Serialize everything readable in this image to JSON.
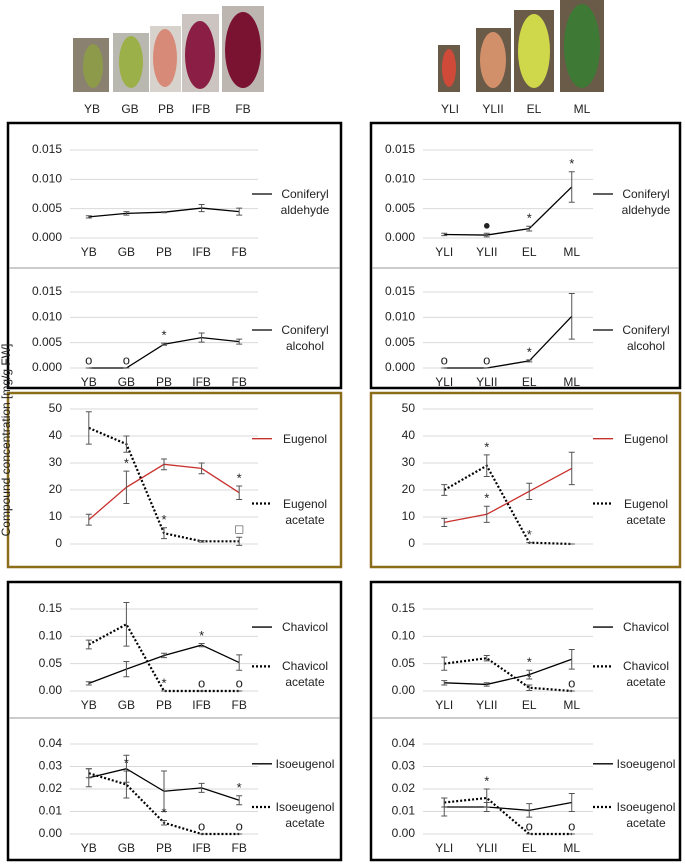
{
  "y_axis_label": "Compound concentration [mg/g FW]",
  "photo_labels": {
    "flowers": [
      "YB",
      "GB",
      "PB",
      "IFB",
      "FB"
    ],
    "leaves": [
      "YLI",
      "YLII",
      "EL",
      "ML"
    ]
  },
  "chart_data": [
    {
      "type": "line",
      "categories": [
        "YB",
        "GB",
        "PB",
        "IFB",
        "FB"
      ],
      "ylim": [
        0,
        0.015
      ],
      "yticks": [
        {
          "value": 0,
          "label": "0.000"
        },
        0.005,
        {
          "value": 0.01,
          "label": "0.010"
        },
        0.015
      ],
      "grid": true,
      "series": [
        {
          "name": "Coniferyl aldehyde",
          "color": "#000000",
          "style": "solid",
          "values": [
            0.0036,
            0.0042,
            0.0044,
            0.0051,
            0.0045
          ],
          "errors": [
            0.0002,
            0.0003,
            0.0001,
            0.0006,
            0.0006
          ]
        }
      ]
    },
    {
      "type": "line",
      "categories": [
        "YB",
        "GB",
        "PB",
        "IFB",
        "FB"
      ],
      "ylim": [
        0,
        0.015
      ],
      "yticks": [
        {
          "value": 0,
          "label": "0.000"
        },
        0.005,
        {
          "value": 0.01,
          "label": "0.010"
        },
        0.015
      ],
      "grid": true,
      "series": [
        {
          "name": "Coniferyl alcohol",
          "color": "#000000",
          "style": "solid",
          "values": [
            0,
            0,
            0.0047,
            0.006,
            0.0052
          ],
          "errors": [
            0,
            0,
            0.0002,
            0.0009,
            0.0005
          ],
          "annotations": [
            "o",
            "o",
            "*",
            null,
            null
          ]
        }
      ]
    },
    {
      "type": "line",
      "categories": [
        "YLI",
        "YLII",
        "EL",
        "ML"
      ],
      "ylim": [
        0,
        0.015
      ],
      "yticks": [
        {
          "value": 0,
          "label": "0.000"
        },
        0.005,
        {
          "value": 0.01,
          "label": "0.010"
        },
        0.015
      ],
      "grid": true,
      "series": [
        {
          "name": "Coniferyl aldehyde",
          "color": "#000000",
          "style": "solid",
          "values": [
            0.0006,
            0.0005,
            0.0016,
            0.0087
          ],
          "errors": [
            0.0002,
            0.0003,
            0.0004,
            0.0026
          ],
          "annotations": [
            null,
            "●",
            "*",
            "*"
          ]
        }
      ]
    },
    {
      "type": "line",
      "categories": [
        "YLI",
        "YLII",
        "EL",
        "ML"
      ],
      "ylim": [
        0,
        0.015
      ],
      "yticks": [
        {
          "value": 0,
          "label": "0.000"
        },
        0.005,
        {
          "value": 0.01,
          "label": "0.010"
        },
        0.015
      ],
      "grid": true,
      "series": [
        {
          "name": "Coniferyl alcohol",
          "color": "#000000",
          "style": "solid",
          "values": [
            0,
            0,
            0.0014,
            0.0102
          ],
          "errors": [
            0,
            0,
            0.0002,
            0.0045
          ],
          "annotations": [
            "o",
            "o",
            "*",
            null
          ]
        }
      ]
    },
    {
      "type": "line",
      "ylim": [
        0,
        50
      ],
      "yticks": [
        0,
        10,
        20,
        30,
        40,
        50
      ],
      "grid": true,
      "series": [
        {
          "name": "Eugenol",
          "color": "#c8302d",
          "style": "solid",
          "values": [
            9,
            21,
            29.5,
            28,
            19
          ],
          "errors": [
            2,
            6,
            2,
            2,
            2.5
          ],
          "annotations": [
            null,
            "*",
            null,
            null,
            "*"
          ]
        },
        {
          "name": "Eugenol acetate",
          "color": "#000000",
          "style": "dotted",
          "values": [
            43,
            37,
            4,
            1,
            1
          ],
          "errors": [
            6,
            3,
            2,
            0.3,
            1.5
          ],
          "annotations": [
            null,
            null,
            "*",
            null,
            "□"
          ]
        }
      ]
    },
    {
      "type": "line",
      "ylim": [
        0,
        50
      ],
      "yticks": [
        0,
        10,
        20,
        30,
        40,
        50
      ],
      "grid": true,
      "series": [
        {
          "name": "Eugenol",
          "color": "#c8302d",
          "style": "solid",
          "values": [
            8,
            11,
            19.5,
            28
          ],
          "errors": [
            1.5,
            3,
            3,
            6
          ],
          "annotations": [
            null,
            "*",
            null,
            null
          ]
        },
        {
          "name": "Eugenol acetate",
          "color": "#000000",
          "style": "dotted",
          "values": [
            20,
            29,
            0.5,
            0
          ],
          "errors": [
            2,
            4,
            0,
            0
          ],
          "annotations": [
            null,
            "*",
            "*",
            null
          ]
        }
      ]
    },
    {
      "type": "line",
      "categories": [
        "YB",
        "GB",
        "PB",
        "IFB",
        "FB"
      ],
      "ylim": [
        0,
        0.15
      ],
      "yticks": [
        {
          "value": 0,
          "label": "0.00"
        },
        0.05,
        {
          "value": 0.1,
          "label": "0.10"
        },
        0.15
      ],
      "grid": true,
      "series": [
        {
          "name": "Chavicol",
          "color": "#000000",
          "style": "solid",
          "values": [
            0.014,
            0.04,
            0.065,
            0.084,
            0.052
          ],
          "errors": [
            0.003,
            0.014,
            0.004,
            0.003,
            0.014
          ],
          "annotations": [
            null,
            null,
            null,
            "*",
            null
          ]
        },
        {
          "name": "Chavicol acetate",
          "color": "#000000",
          "style": "dotted",
          "values": [
            0.085,
            0.122,
            0,
            0,
            0
          ],
          "errors": [
            0.008,
            0.04,
            0,
            0,
            0
          ],
          "annotations": [
            null,
            null,
            "*",
            "o",
            "o"
          ]
        }
      ]
    },
    {
      "type": "line",
      "categories": [
        "YB",
        "GB",
        "PB",
        "IFB",
        "FB"
      ],
      "ylim": [
        0,
        0.04
      ],
      "yticks": [
        {
          "value": 0,
          "label": "0.00"
        },
        0.01,
        0.02,
        0.03,
        0.04
      ],
      "grid": true,
      "series": [
        {
          "name": "Isoeugenol",
          "color": "#000000",
          "style": "solid",
          "values": [
            0.025,
            0.029,
            0.019,
            0.0205,
            0.015
          ],
          "errors": [
            0.004,
            0.006,
            0.009,
            0.002,
            0.002
          ],
          "annotations": [
            null,
            null,
            null,
            null,
            "*"
          ]
        },
        {
          "name": "Isoeugenol acetate",
          "color": "#000000",
          "style": "dotted",
          "values": [
            0.027,
            0.022,
            0.005,
            0,
            0
          ],
          "errors": [
            0.002,
            0.006,
            0.001,
            0,
            0
          ],
          "annotations": [
            null,
            "*",
            "*",
            "o",
            "o"
          ]
        }
      ]
    },
    {
      "type": "line",
      "categories": [
        "YLI",
        "YLII",
        "EL",
        "ML"
      ],
      "ylim": [
        0,
        0.15
      ],
      "yticks": [
        {
          "value": 0,
          "label": "0.00"
        },
        0.05,
        {
          "value": 0.1,
          "label": "0.10"
        },
        0.15
      ],
      "grid": true,
      "series": [
        {
          "name": "Chavicol",
          "color": "#000000",
          "style": "solid",
          "values": [
            0.015,
            0.012,
            0.03,
            0.058
          ],
          "errors": [
            0.004,
            0.003,
            0.008,
            0.018
          ],
          "annotations": [
            null,
            null,
            "*",
            null
          ]
        },
        {
          "name": "Chavicol acetate",
          "color": "#000000",
          "style": "dotted",
          "values": [
            0.05,
            0.06,
            0.006,
            0
          ],
          "errors": [
            0.012,
            0.005,
            0.005,
            0
          ],
          "annotations": [
            null,
            null,
            "*",
            "o"
          ]
        }
      ]
    },
    {
      "type": "line",
      "categories": [
        "YLI",
        "YLII",
        "EL",
        "ML"
      ],
      "ylim": [
        0,
        0.04
      ],
      "yticks": [
        {
          "value": 0,
          "label": "0.00"
        },
        0.01,
        0.02,
        0.03,
        0.04
      ],
      "grid": true,
      "series": [
        {
          "name": "Isoeugenol",
          "color": "#000000",
          "style": "solid",
          "values": [
            0.012,
            0.012,
            0.0105,
            0.014
          ],
          "errors": [
            0.004,
            0.002,
            0.003,
            0.004
          ]
        },
        {
          "name": "Isoeugenol acetate",
          "color": "#000000",
          "style": "dotted",
          "values": [
            0.014,
            0.016,
            0,
            0
          ],
          "errors": [
            0.002,
            0.004,
            0,
            0
          ],
          "annotations": [
            null,
            "*",
            "o",
            "o"
          ]
        }
      ]
    }
  ]
}
